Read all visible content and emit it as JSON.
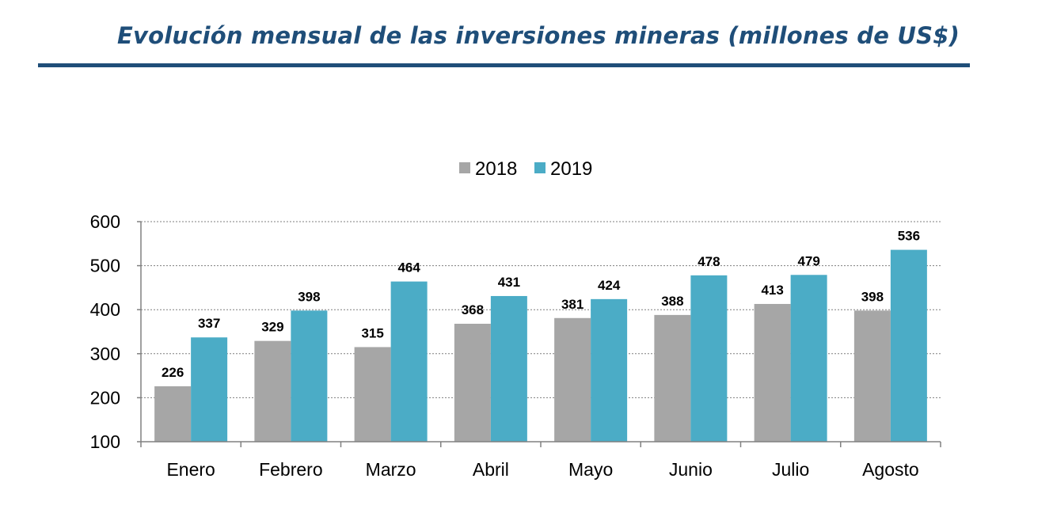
{
  "title": "Evolución mensual de las inversiones mineras (millones de US$)",
  "colors": {
    "title": "#1f4e79",
    "s2018": "#a6a6a6",
    "s2019": "#4bacc6",
    "grid": "#7f7f7f",
    "axis": "#808080"
  },
  "chart_data": {
    "type": "bar",
    "categories": [
      "Enero",
      "Febrero",
      "Marzo",
      "Abril",
      "Mayo",
      "Junio",
      "Julio",
      "Agosto"
    ],
    "series": [
      {
        "name": "2018",
        "values": [
          226,
          329,
          315,
          368,
          381,
          388,
          413,
          398
        ]
      },
      {
        "name": "2019",
        "values": [
          337,
          398,
          464,
          431,
          424,
          478,
          479,
          536
        ]
      }
    ],
    "ylim": [
      100,
      600
    ],
    "yticks": [
      100,
      200,
      300,
      400,
      500,
      600
    ],
    "xlabel": "",
    "ylabel": "",
    "grid": true,
    "legend": "top"
  }
}
